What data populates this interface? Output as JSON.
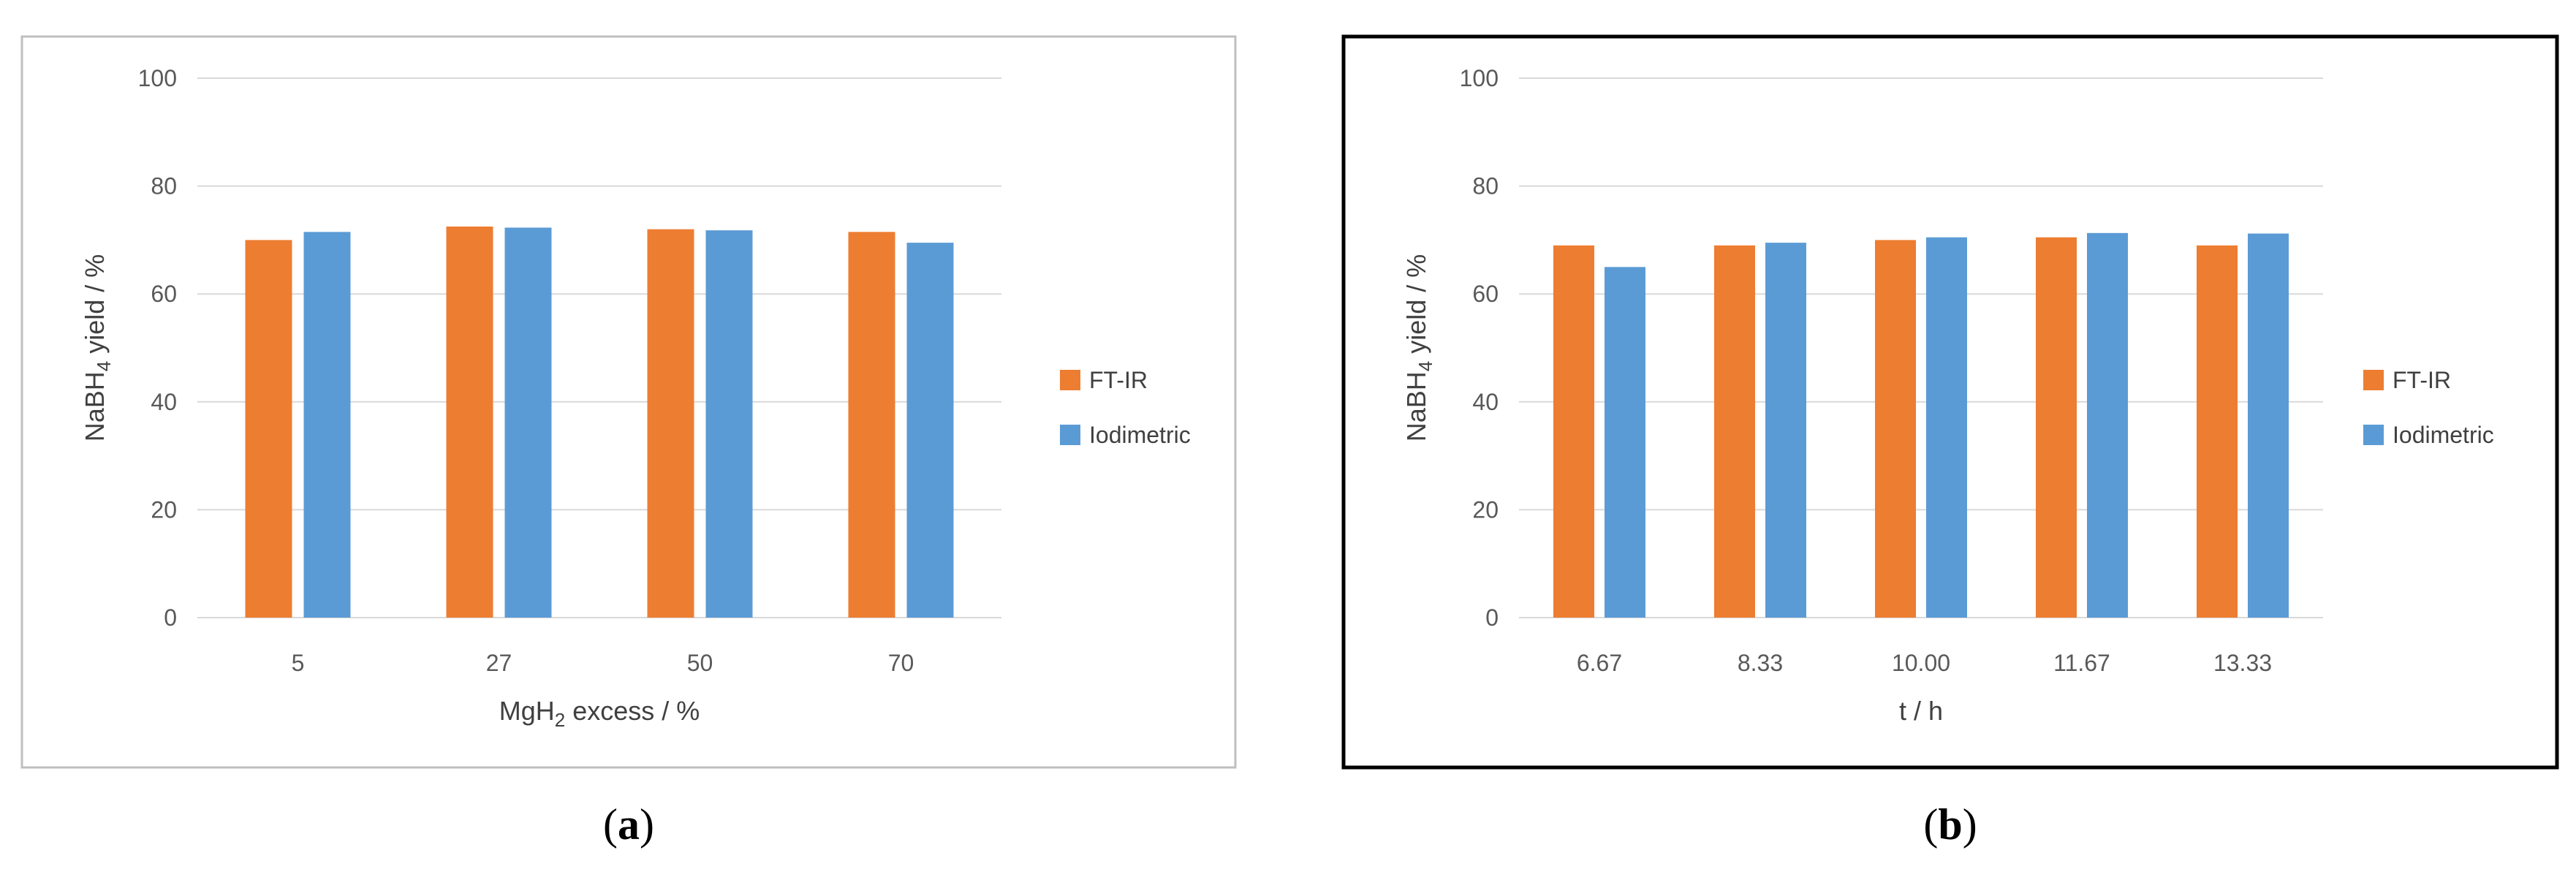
{
  "chart_data": [
    {
      "type": "bar",
      "panel_label": "(a)",
      "categories": [
        "5",
        "27",
        "50",
        "70"
      ],
      "series": [
        {
          "name": "FT-IR",
          "values": [
            70,
            72.5,
            72,
            71.5
          ]
        },
        {
          "name": "Iodimetric",
          "values": [
            71.5,
            72.3,
            71.8,
            69.5
          ]
        }
      ],
      "title": "",
      "xlabel": {
        "base": "MgH",
        "sub": "2",
        "rest": " excess / %"
      },
      "ylabel": {
        "base": "NaBH",
        "sub": "4",
        "rest": " yield / %"
      },
      "ylim": [
        0,
        100
      ],
      "yticks": [
        "0",
        "20",
        "40",
        "60",
        "80",
        "100"
      ],
      "grid": true,
      "legend": "right"
    },
    {
      "type": "bar",
      "panel_label": "(b)",
      "categories": [
        "6.67",
        "8.33",
        "10.00",
        "11.67",
        "13.33"
      ],
      "series": [
        {
          "name": "FT-IR",
          "values": [
            69,
            69,
            70,
            70.5,
            69
          ]
        },
        {
          "name": "Iodimetric",
          "values": [
            65,
            69.5,
            70.5,
            71.3,
            71.2
          ]
        }
      ],
      "title": "",
      "xlabel": {
        "base": "t / h",
        "sub": "",
        "rest": ""
      },
      "ylabel": {
        "base": "NaBH",
        "sub": "4",
        "rest": " yield / %"
      },
      "ylim": [
        0,
        100
      ],
      "yticks": [
        "0",
        "20",
        "40",
        "60",
        "80",
        "100"
      ],
      "grid": true,
      "legend": "right"
    }
  ],
  "colors": {
    "ftir": "#ED7D31",
    "iodimetric": "#5B9BD5",
    "grid": "#D9D9D9"
  }
}
